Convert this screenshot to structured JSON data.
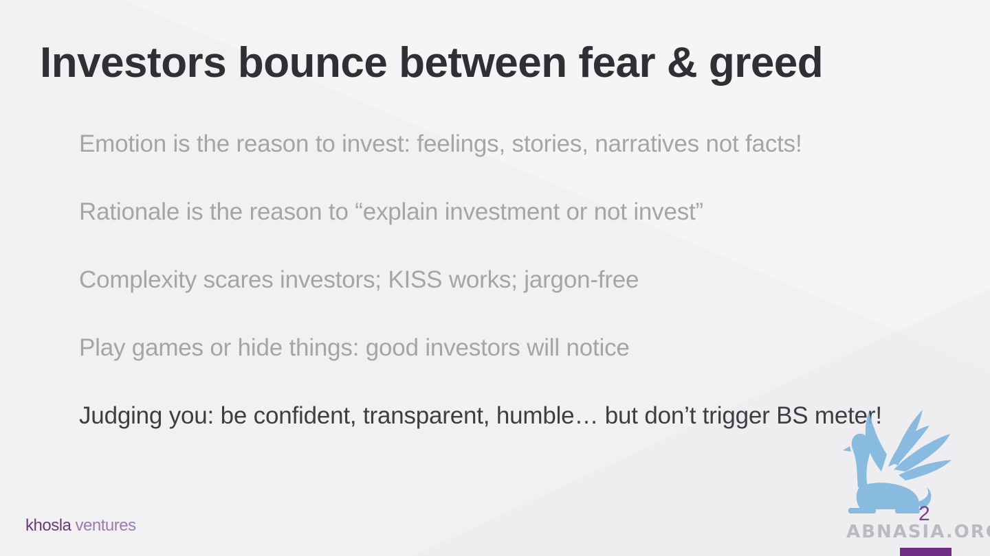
{
  "slide": {
    "title": "Investors bounce between fear & greed",
    "bullets": [
      {
        "text": "Emotion is the reason to invest: feelings, stories, narratives not facts!",
        "active": false
      },
      {
        "text": "Rationale is the reason to “explain investment or not invest”",
        "active": false
      },
      {
        "text": "Complexity scares investors; KISS works; jargon-free",
        "active": false
      },
      {
        "text": "Play games or hide things: good investors will notice",
        "active": false
      },
      {
        "text": "Judging you: be confident, transparent, humble… but don’t trigger BS meter!",
        "active": true
      }
    ],
    "page_number": "2"
  },
  "footer": {
    "logo_word1": "khosla",
    "logo_word2": "ventures"
  },
  "watermark": {
    "text": "ABNASIA.ORG",
    "art": "griffin-logo"
  },
  "colors": {
    "title": "#2e3035",
    "bullet_dimmed": "#a3a5a8",
    "bullet_active": "#3c3e42",
    "brand_purple": "#6e2e84",
    "watermark_blue": "#7fb6e0"
  }
}
